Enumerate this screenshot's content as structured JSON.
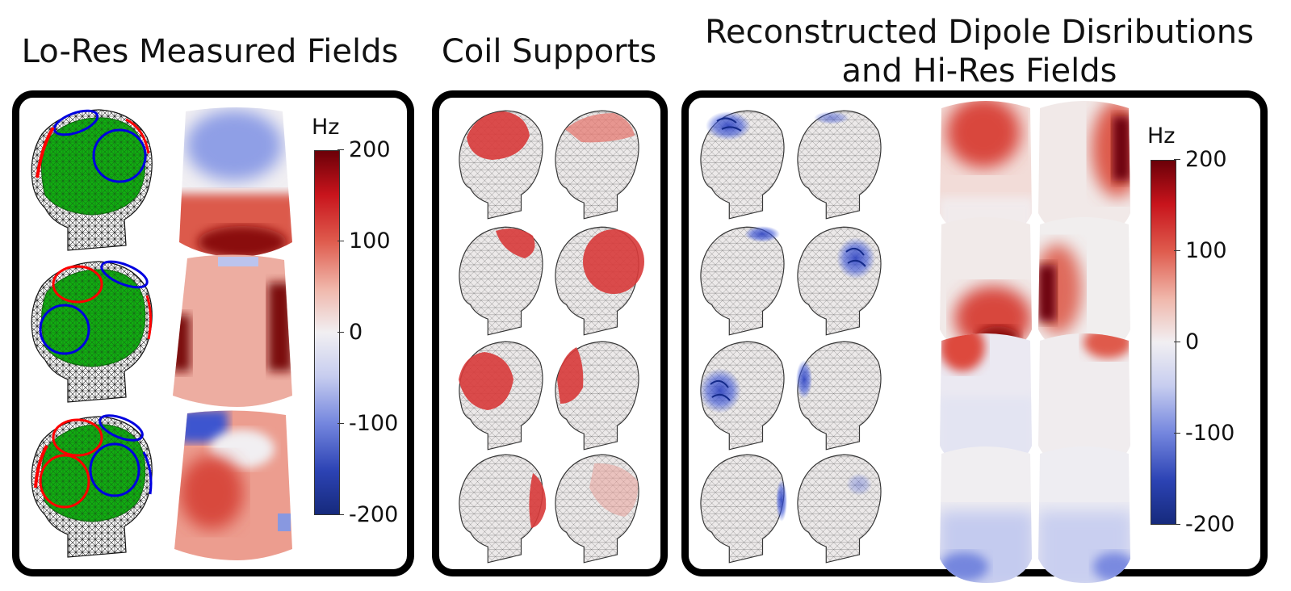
{
  "titles": {
    "measured": "Lo-Res Measured Fields",
    "supports": "Coil Supports",
    "reconstructed_line1": "Reconstructed Dipole Disributions",
    "reconstructed_line2": "and Hi-Res Fields"
  },
  "colorbar": {
    "unit": "Hz",
    "ticks": [
      "200",
      "100",
      "0",
      "-100",
      "-200"
    ],
    "max_color": "#6b0008",
    "zero_color": "#f1eff2",
    "min_color": "#162a7c"
  },
  "colors": {
    "shim_region": "#10b010",
    "coil_red": "#ff0000",
    "coil_blue": "#0000e0",
    "support_fill": "#d83a3a",
    "dipole_blue": "#2a3fbf",
    "head_fill": "#ece9e9"
  }
}
